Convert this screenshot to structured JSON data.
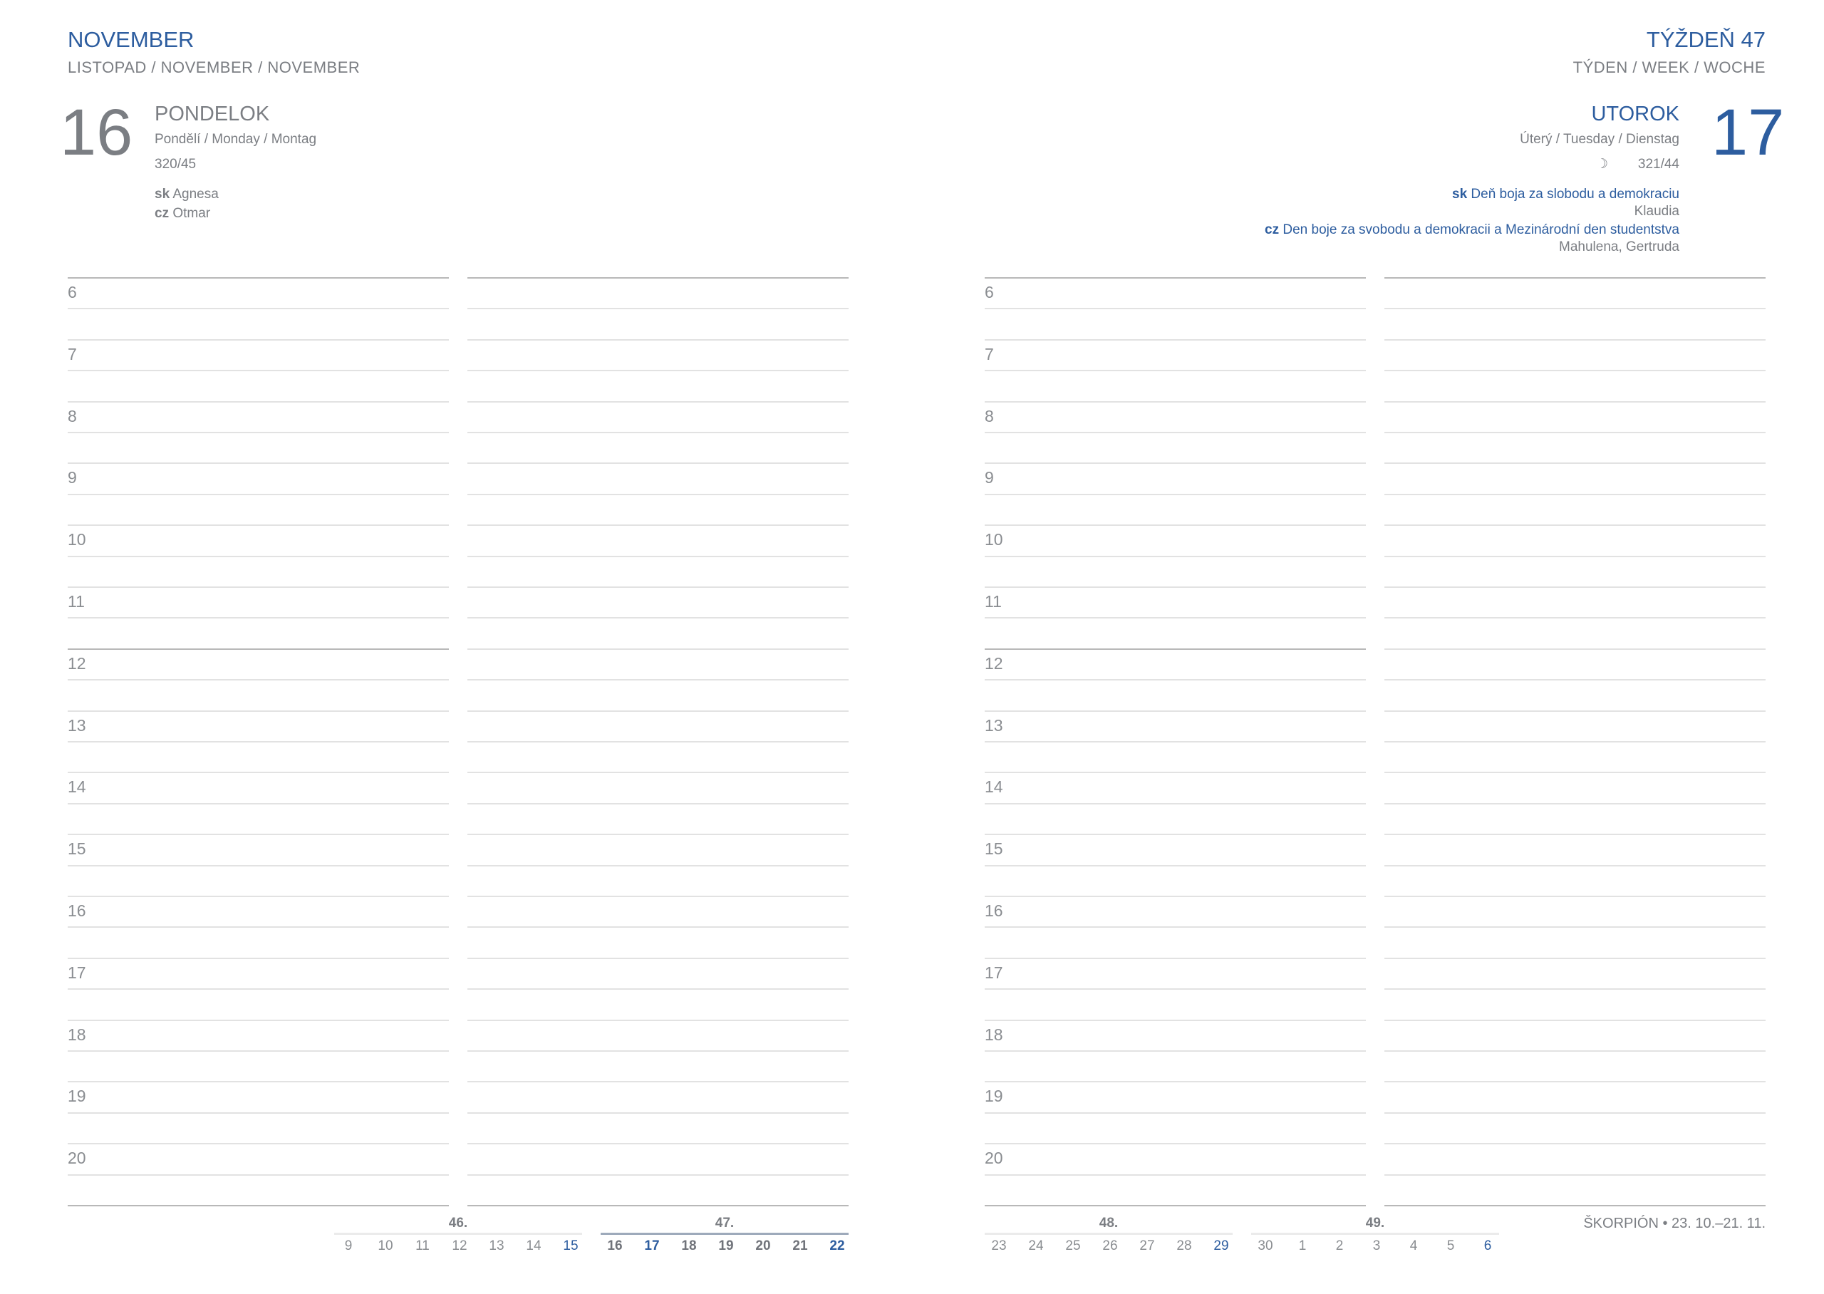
{
  "left": {
    "month": "NOVEMBER",
    "month_sub": "LISTOPAD / NOVEMBER / NOVEMBER",
    "day_number": "16",
    "day_name": "PONDELOK",
    "day_name_sub": "Pondělí / Monday / Montag",
    "day_of_year": "320/45",
    "namedays": [
      {
        "lang": "sk",
        "name": "Agnesa"
      },
      {
        "lang": "cz",
        "name": "Otmar"
      }
    ]
  },
  "right": {
    "week": "TÝŽDEŇ 47",
    "week_sub": "TÝDEN / WEEK / WOCHE",
    "day_number": "17",
    "day_name": "UTOROK",
    "day_name_sub": "Úterý / Tuesday / Dienstag",
    "moon_icon": "waning-moon-icon",
    "moon_glyph": "☽",
    "day_of_year": "321/44",
    "holidays": [
      {
        "lang": "sk",
        "title": "Deň boja za slobodu a demokraciu",
        "names": "Klaudia"
      },
      {
        "lang": "cz",
        "title": "Den boje za svobodu a demokracii a Mezinárodní den studentstva",
        "names": "Mahulena, Gertruda"
      }
    ],
    "zodiac": "ŠKORPIÓN • 23. 10.–21. 11."
  },
  "hours": [
    "6",
    "7",
    "8",
    "9",
    "10",
    "11",
    "12",
    "13",
    "14",
    "15",
    "16",
    "17",
    "18",
    "19",
    "20"
  ],
  "mini_calendar": {
    "weeks": [
      {
        "label": "46.",
        "days": [
          "9",
          "10",
          "11",
          "12",
          "13",
          "14",
          "15"
        ],
        "current": false
      },
      {
        "label": "47.",
        "days": [
          "16",
          "17",
          "18",
          "19",
          "20",
          "21",
          "22"
        ],
        "current": true,
        "selected": [
          "17",
          "22"
        ]
      },
      {
        "label": "48.",
        "days": [
          "23",
          "24",
          "25",
          "26",
          "27",
          "28",
          "29"
        ],
        "current": false
      },
      {
        "label": "49.",
        "days": [
          "30",
          "1",
          "2",
          "3",
          "4",
          "5",
          "6"
        ],
        "current": false
      }
    ]
  },
  "colors": {
    "accent": "#2d5d9f",
    "text": "#7b7e83",
    "rule": "#e2e2e2",
    "rule_strong": "#b8b8b8"
  }
}
